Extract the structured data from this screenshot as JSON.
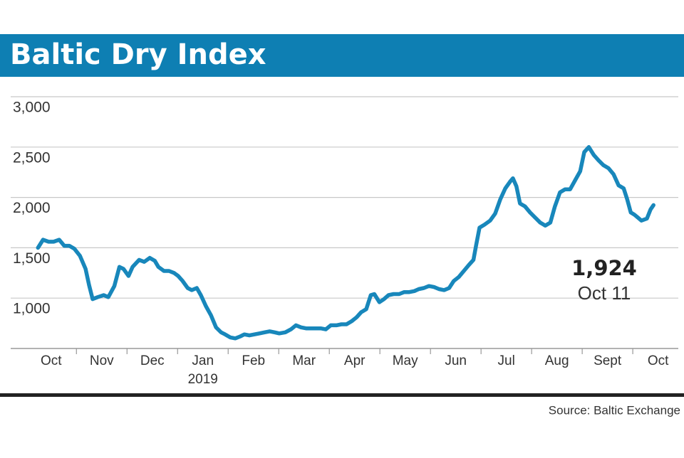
{
  "chart_data": {
    "type": "line",
    "title": "Baltic Dry Index",
    "source": "Source: Baltic Exchange",
    "xlim": [
      -0.3,
      12.9
    ],
    "xticks": [
      {
        "value": 0.5,
        "label": "Oct"
      },
      {
        "value": 1.5,
        "label": "Nov"
      },
      {
        "value": 2.5,
        "label": "Dec"
      },
      {
        "value": 3.5,
        "label": "Jan",
        "sublabel": "2019"
      },
      {
        "value": 4.5,
        "label": "Feb"
      },
      {
        "value": 5.5,
        "label": "Mar"
      },
      {
        "value": 6.5,
        "label": "Apr"
      },
      {
        "value": 7.5,
        "label": "May"
      },
      {
        "value": 8.5,
        "label": "Jun"
      },
      {
        "value": 9.5,
        "label": "Jul"
      },
      {
        "value": 10.5,
        "label": "Aug"
      },
      {
        "value": 11.5,
        "label": "Sept"
      },
      {
        "value": 12.5,
        "label": "Oct"
      }
    ],
    "ylim": [
      500,
      3000
    ],
    "yticks": [
      {
        "value": 1000,
        "label": "1,000"
      },
      {
        "value": 1500,
        "label": "1,500"
      },
      {
        "value": 2000,
        "label": "2,000"
      },
      {
        "value": 2500,
        "label": "2,500"
      },
      {
        "value": 3000,
        "label": "3,000"
      }
    ],
    "grid": true,
    "series": [
      {
        "color": "#1887bb",
        "x": [
          0.24,
          0.34,
          0.45,
          0.55,
          0.66,
          0.76,
          0.86,
          0.96,
          1.07,
          1.18,
          1.25,
          1.32,
          1.42,
          1.54,
          1.63,
          1.75,
          1.85,
          1.93,
          2.03,
          2.11,
          2.24,
          2.34,
          2.45,
          2.55,
          2.62,
          2.73,
          2.83,
          2.93,
          3.01,
          3.1,
          3.2,
          3.28,
          3.38,
          3.46,
          3.56,
          3.66,
          3.76,
          3.86,
          3.94,
          4.04,
          4.14,
          4.24,
          4.32,
          4.42,
          4.52,
          4.62,
          4.72,
          4.82,
          4.92,
          5.01,
          5.13,
          5.24,
          5.34,
          5.44,
          5.54,
          5.63,
          5.73,
          5.83,
          5.93,
          6.03,
          6.14,
          6.24,
          6.34,
          6.44,
          6.54,
          6.63,
          6.73,
          6.82,
          6.89,
          6.99,
          7.08,
          7.17,
          7.27,
          7.38,
          7.48,
          7.58,
          7.68,
          7.77,
          7.87,
          7.97,
          8.07,
          8.17,
          8.27,
          8.37,
          8.46,
          8.56,
          8.66,
          8.76,
          8.85,
          8.9,
          8.97,
          9.07,
          9.18,
          9.28,
          9.38,
          9.48,
          9.58,
          9.63,
          9.7,
          9.77,
          9.87,
          9.97,
          10.07,
          10.17,
          10.27,
          10.37,
          10.46,
          10.56,
          10.66,
          10.76,
          10.86,
          10.96,
          11.04,
          11.13,
          11.23,
          11.32,
          11.42,
          11.52,
          11.62,
          11.72,
          11.82,
          11.89,
          11.96,
          12.03,
          12.1,
          12.17,
          12.28,
          12.35,
          12.41
        ],
        "values": [
          1500,
          1580,
          1560,
          1560,
          1580,
          1520,
          1520,
          1490,
          1420,
          1290,
          1130,
          990,
          1010,
          1030,
          1010,
          1120,
          1310,
          1290,
          1220,
          1310,
          1380,
          1360,
          1400,
          1370,
          1310,
          1270,
          1270,
          1250,
          1220,
          1170,
          1100,
          1080,
          1100,
          1030,
          920,
          830,
          710,
          660,
          640,
          610,
          600,
          620,
          640,
          630,
          640,
          650,
          660,
          670,
          660,
          650,
          660,
          690,
          730,
          710,
          700,
          700,
          700,
          700,
          690,
          730,
          730,
          740,
          740,
          770,
          810,
          860,
          890,
          1030,
          1040,
          960,
          990,
          1030,
          1040,
          1040,
          1060,
          1060,
          1070,
          1090,
          1100,
          1120,
          1110,
          1090,
          1080,
          1100,
          1170,
          1210,
          1270,
          1330,
          1380,
          1520,
          1700,
          1730,
          1770,
          1840,
          1980,
          2090,
          2160,
          2190,
          2110,
          1940,
          1910,
          1850,
          1800,
          1750,
          1720,
          1750,
          1910,
          2050,
          2080,
          2080,
          2170,
          2260,
          2450,
          2500,
          2420,
          2370,
          2320,
          2290,
          2230,
          2120,
          2090,
          1980,
          1850,
          1830,
          1800,
          1770,
          1790,
          1880,
          1924
        ]
      }
    ],
    "annotations": [
      {
        "text": "1,924"
      },
      {
        "text": "Oct 11"
      }
    ]
  }
}
